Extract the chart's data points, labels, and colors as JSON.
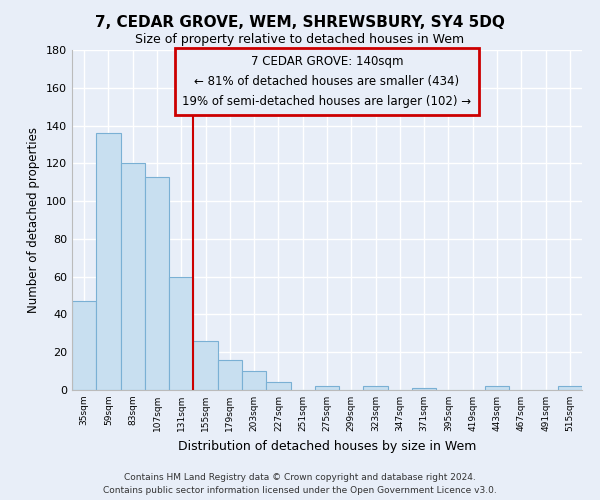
{
  "title": "7, CEDAR GROVE, WEM, SHREWSBURY, SY4 5DQ",
  "subtitle": "Size of property relative to detached houses in Wem",
  "xlabel": "Distribution of detached houses by size in Wem",
  "ylabel": "Number of detached properties",
  "bin_labels": [
    "35sqm",
    "59sqm",
    "83sqm",
    "107sqm",
    "131sqm",
    "155sqm",
    "179sqm",
    "203sqm",
    "227sqm",
    "251sqm",
    "275sqm",
    "299sqm",
    "323sqm",
    "347sqm",
    "371sqm",
    "395sqm",
    "419sqm",
    "443sqm",
    "467sqm",
    "491sqm",
    "515sqm"
  ],
  "bar_values": [
    47,
    136,
    120,
    113,
    60,
    26,
    16,
    10,
    4,
    0,
    2,
    0,
    2,
    0,
    1,
    0,
    0,
    2,
    0,
    0,
    2
  ],
  "bar_color": "#c8dff0",
  "bar_edge_color": "#7ab0d4",
  "vline_x": 4.5,
  "vline_color": "#cc0000",
  "annotation_title": "7 CEDAR GROVE: 140sqm",
  "annotation_line1": "← 81% of detached houses are smaller (434)",
  "annotation_line2": "19% of semi-detached houses are larger (102) →",
  "annotation_box_color": "#e8eef8",
  "annotation_box_edge": "#cc0000",
  "ylim": [
    0,
    180
  ],
  "yticks": [
    0,
    20,
    40,
    60,
    80,
    100,
    120,
    140,
    160,
    180
  ],
  "footer_line1": "Contains HM Land Registry data © Crown copyright and database right 2024.",
  "footer_line2": "Contains public sector information licensed under the Open Government Licence v3.0.",
  "background_color": "#e8eef8",
  "grid_color": "white",
  "title_fontsize": 11,
  "subtitle_fontsize": 9
}
